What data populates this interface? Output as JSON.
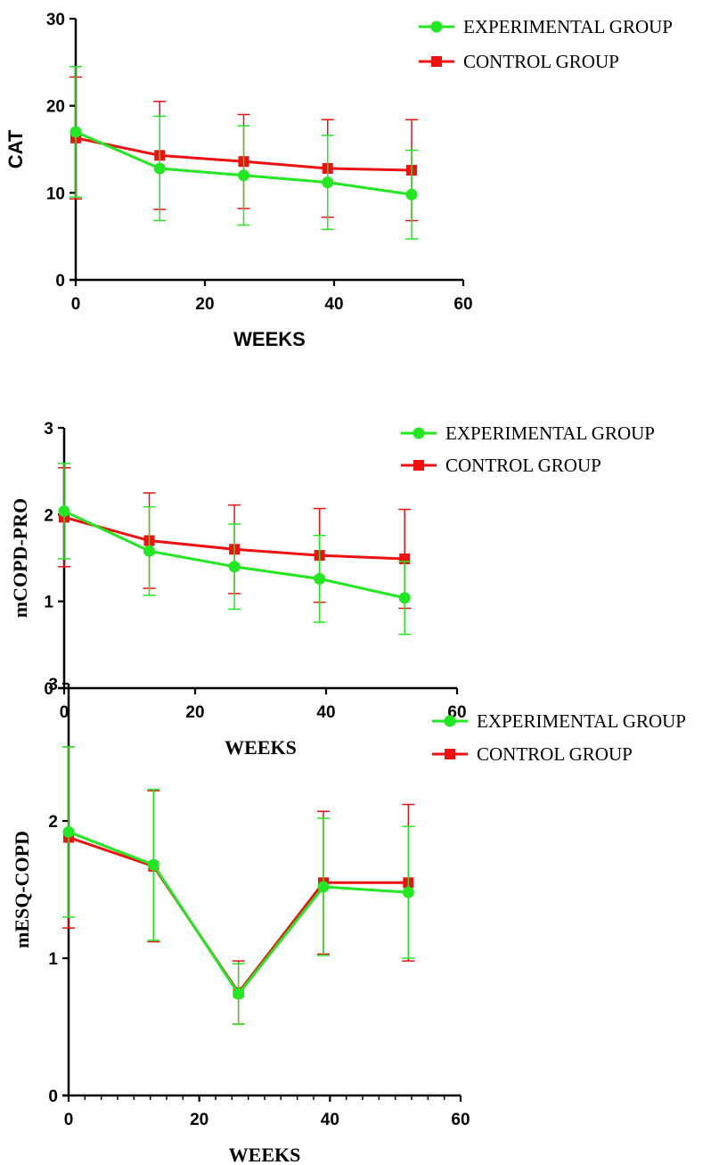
{
  "chart_data": [
    {
      "type": "line",
      "xlabel": "WEEKS",
      "ylabel": "CAT",
      "xlim": [
        0,
        60
      ],
      "ylim": [
        0,
        30
      ],
      "xticks": [
        "0",
        "20",
        "40",
        "60"
      ],
      "yticks": [
        "0",
        "10",
        "20",
        "30"
      ],
      "legend_position": "top-right",
      "series": [
        {
          "name": "EXPERIMENTAL GROUP",
          "color": "#22e822",
          "marker": "circle",
          "x": [
            0,
            13,
            26,
            39,
            52
          ],
          "y": [
            17.0,
            12.8,
            12.0,
            11.2,
            9.8
          ],
          "err": [
            7.5,
            6.0,
            5.7,
            5.4,
            5.1
          ]
        },
        {
          "name": "CONTROL GROUP",
          "color": "#ee1111",
          "marker": "square",
          "x": [
            0,
            13,
            26,
            39,
            52
          ],
          "y": [
            16.3,
            14.3,
            13.6,
            12.8,
            12.6
          ],
          "err": [
            7.0,
            6.2,
            5.4,
            5.6,
            5.8
          ]
        }
      ]
    },
    {
      "type": "line",
      "xlabel": "WEEKS",
      "ylabel": "mCOPD-PRO",
      "xlim": [
        0,
        60
      ],
      "ylim": [
        0,
        3
      ],
      "xticks": [
        "0",
        "20",
        "40",
        "60"
      ],
      "yticks": [
        "0",
        "1",
        "2",
        "3"
      ],
      "legend_position": "top-right",
      "series": [
        {
          "name": "EXPERIMENTAL GROUP",
          "color": "#22e822",
          "marker": "circle",
          "x": [
            0,
            13,
            26,
            39,
            52
          ],
          "y": [
            2.04,
            1.58,
            1.4,
            1.26,
            1.04
          ],
          "err": [
            0.55,
            0.51,
            0.49,
            0.5,
            0.42
          ]
        },
        {
          "name": "CONTROL GROUP",
          "color": "#ee1111",
          "marker": "square",
          "x": [
            0,
            13,
            26,
            39,
            52
          ],
          "y": [
            1.97,
            1.7,
            1.6,
            1.53,
            1.49
          ],
          "err": [
            0.57,
            0.55,
            0.51,
            0.54,
            0.57
          ]
        }
      ]
    },
    {
      "type": "line",
      "xlabel": "WEEKS",
      "ylabel": "mESQ-COPD",
      "xlim": [
        0,
        60
      ],
      "ylim": [
        0,
        3
      ],
      "xticks": [
        "0",
        "20",
        "40",
        "60"
      ],
      "yticks": [
        "0",
        "1",
        "2",
        "3"
      ],
      "minor_x_ticks": true,
      "legend_position": "top-right",
      "series": [
        {
          "name": "EXPERIMENTAL GROUP",
          "color": "#22e822",
          "marker": "circle",
          "x": [
            0,
            13,
            26,
            39,
            52
          ],
          "y": [
            1.92,
            1.68,
            0.74,
            1.52,
            1.48
          ],
          "err": [
            0.62,
            0.55,
            0.22,
            0.5,
            0.48
          ]
        },
        {
          "name": "CONTROL GROUP",
          "color": "#ee1111",
          "marker": "square",
          "x": [
            0,
            13,
            26,
            39,
            52
          ],
          "y": [
            1.88,
            1.67,
            0.75,
            1.55,
            1.55
          ],
          "err": [
            0.66,
            0.55,
            0.23,
            0.52,
            0.57
          ]
        }
      ]
    }
  ]
}
